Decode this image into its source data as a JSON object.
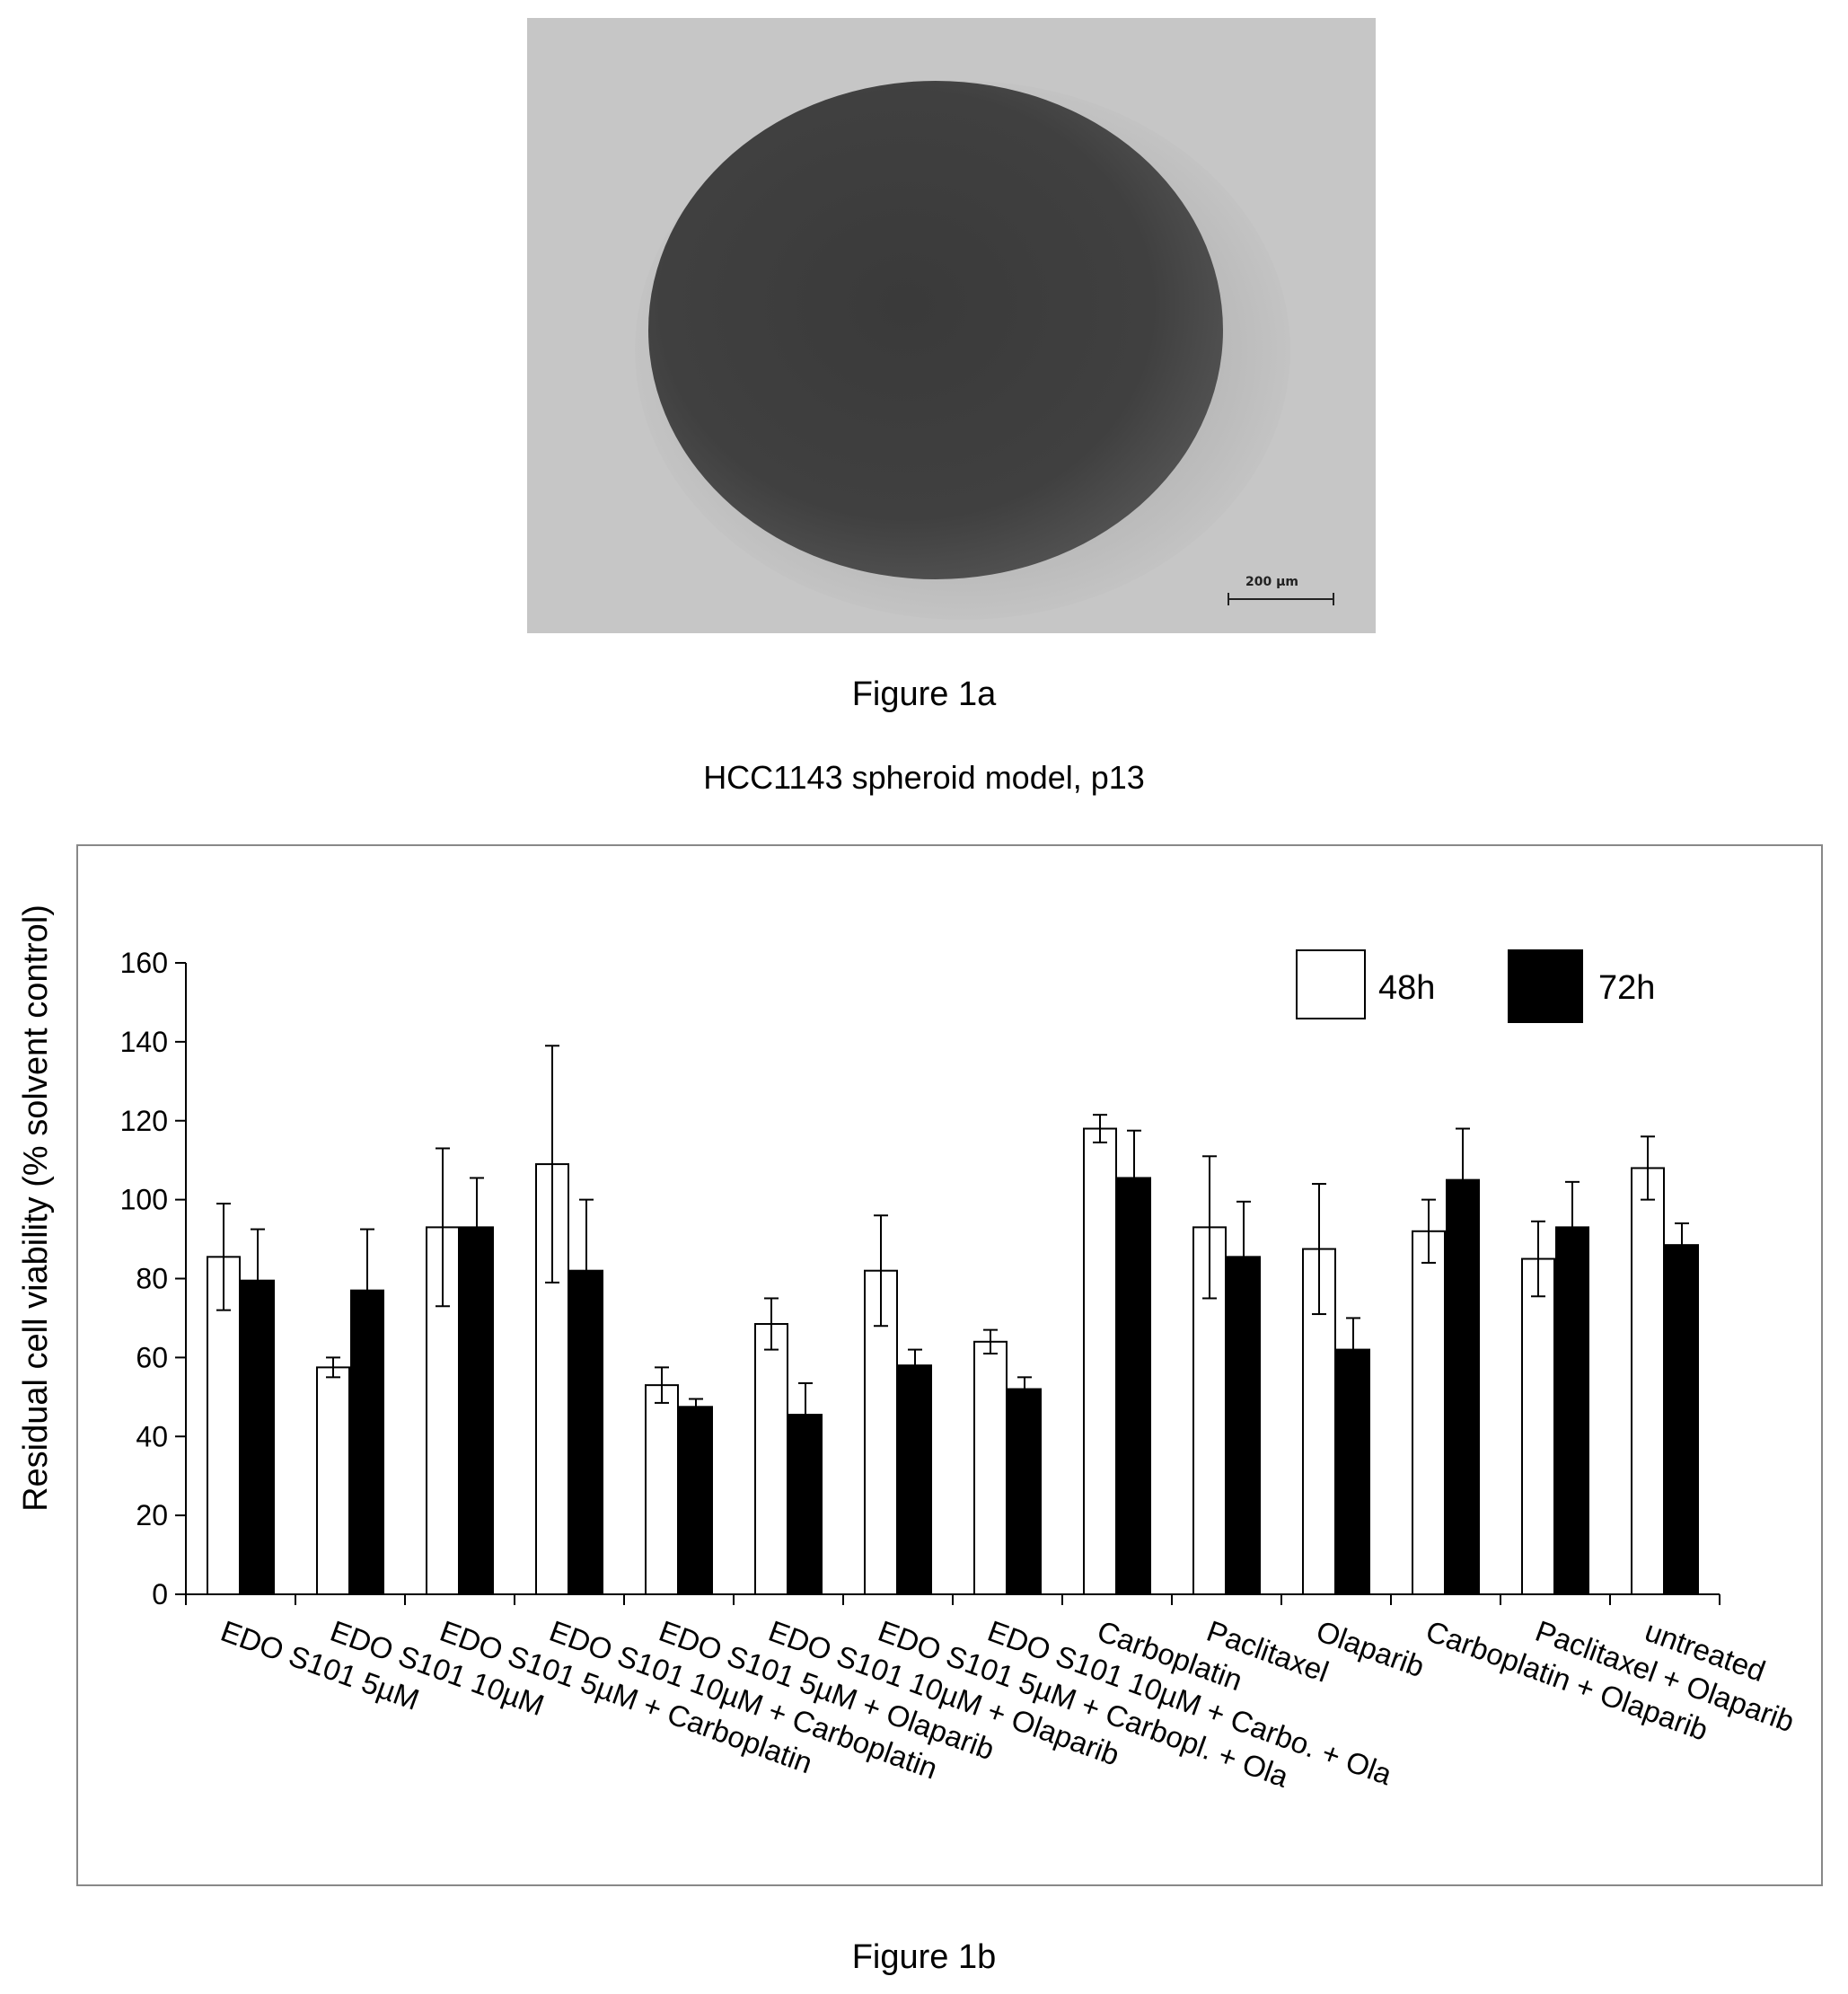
{
  "figure1a": {
    "scale_bar_label": "200 µm",
    "caption": "Figure 1a"
  },
  "figure1b": {
    "caption": "Figure 1b"
  },
  "chart_data": {
    "type": "bar",
    "title": "HCC1143 spheroid model, p13",
    "ylabel": "Residual cell viability (% solvent control)",
    "xlabel": "",
    "ylim": [
      0,
      160
    ],
    "yticks": [
      0,
      20,
      40,
      60,
      80,
      100,
      120,
      140,
      160
    ],
    "grid": false,
    "legend_position": "top-right",
    "categories": [
      "EDO S101 5µM",
      "EDO S101 10µM",
      "EDO S101 5µM + Carboplatin",
      "EDO S101 10µM + Carboplatin",
      "EDO S101 5µM + Olaparib",
      "EDO S101 10µM + Olaparib",
      "EDO S101 5µM + Carbopl. + Ola",
      "EDO S101 10µM + Carbo. + Ola",
      "Carboplatin",
      "Paclitaxel",
      "Olaparib",
      "Carboplatin + Olaparib",
      "Paclitaxel + Olaparib",
      "untreated"
    ],
    "series": [
      {
        "name": "48h",
        "color": "#ffffff",
        "values": [
          85.5,
          57.5,
          93,
          109,
          53,
          68.5,
          82,
          64,
          118,
          93,
          87.5,
          92,
          85,
          108
        ],
        "errors": [
          13.5,
          2.5,
          20,
          30,
          4.5,
          6.5,
          14,
          3,
          3.5,
          18,
          16.5,
          8,
          9.5,
          8
        ]
      },
      {
        "name": "72h",
        "color": "#000000",
        "values": [
          79.5,
          77,
          93,
          82,
          47.5,
          45.5,
          58,
          52,
          105.5,
          85.5,
          62,
          105,
          93,
          88.5
        ],
        "errors": [
          13,
          15.5,
          12.5,
          18,
          2,
          8,
          4,
          3,
          12,
          14,
          8,
          13,
          11.5,
          5.5
        ]
      }
    ]
  }
}
